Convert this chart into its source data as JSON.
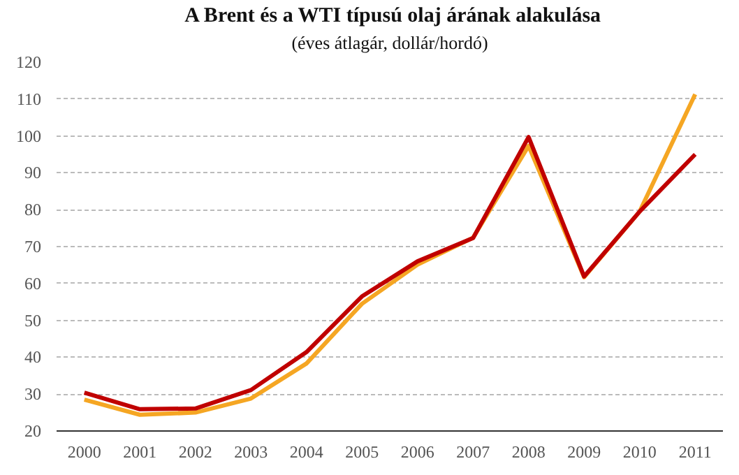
{
  "chart_data": {
    "type": "line",
    "title": "A Brent és a WTI típusú olaj árának alakulása",
    "subtitle": "(éves átlagár, dollár/hordó)",
    "categories": [
      "2000",
      "2001",
      "2002",
      "2003",
      "2004",
      "2005",
      "2006",
      "2007",
      "2008",
      "2009",
      "2010",
      "2011"
    ],
    "series": [
      {
        "color": "#f5a623",
        "values": [
          28.5,
          24.4,
          25.0,
          28.8,
          38.3,
          54.5,
          65.1,
          72.4,
          97.3,
          61.7,
          79.5,
          111.3
        ]
      },
      {
        "color": "#c00000",
        "values": [
          30.4,
          25.9,
          26.1,
          31.1,
          41.4,
          56.5,
          66.0,
          72.3,
          99.7,
          61.9,
          79.5,
          95.0
        ]
      }
    ],
    "ylim": [
      20,
      120
    ],
    "yticks": [
      20,
      30,
      40,
      50,
      60,
      70,
      80,
      90,
      100,
      110,
      120
    ],
    "grid": "y"
  }
}
